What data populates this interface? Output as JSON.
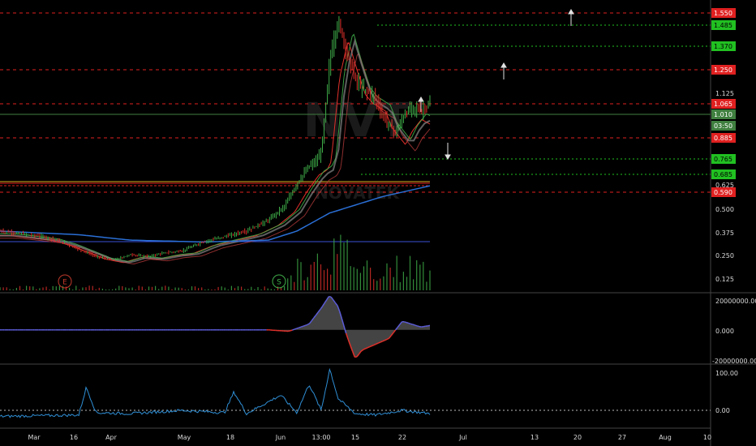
{
  "watermark": {
    "symbol": "NVT",
    "subtitle": "NOVATEK"
  },
  "time_axis": {
    "labels": [
      "Mar",
      "16",
      "Apr",
      "May",
      "18",
      "Jun",
      "13:00",
      "15",
      "22",
      "Jul",
      "13",
      "20",
      "27",
      "Aug",
      "10"
    ]
  },
  "price_axis": {
    "ticks": [
      "1.125",
      "0.625",
      "0.500",
      "0.375",
      "0.250",
      "0.125"
    ],
    "tags": [
      {
        "label": "1.550",
        "color": "#e02020",
        "text_color": "light"
      },
      {
        "label": "1.485",
        "color": "#21c021",
        "text_color": "dark"
      },
      {
        "label": "1.370",
        "color": "#21c021",
        "text_color": "dark"
      },
      {
        "label": "1.250",
        "color": "#e02020",
        "text_color": "light"
      },
      {
        "label": "1.065",
        "color": "#e02020",
        "text_color": "light"
      },
      {
        "label": "1.010",
        "color": "#3f7f3f",
        "text_color": "light"
      },
      {
        "label": "03:50",
        "color": "#3f7f3f",
        "text_color": "light"
      },
      {
        "label": "0.885",
        "color": "#e02020",
        "text_color": "light"
      },
      {
        "label": "0.765",
        "color": "#21c021",
        "text_color": "dark"
      },
      {
        "label": "0.685",
        "color": "#21c021",
        "text_color": "dark"
      },
      {
        "label": "0.590",
        "color": "#e02020",
        "text_color": "light"
      }
    ]
  },
  "event_markers": [
    {
      "letter": "E",
      "color": "#c0392b"
    },
    {
      "letter": "S",
      "color": "#3fae49"
    }
  ],
  "macd_axis": {
    "ticks": [
      "20000000.000",
      "0.000",
      "-20000000.000"
    ]
  },
  "rsi_axis": {
    "ticks": [
      "100.00",
      "0.00"
    ]
  },
  "colors": {
    "background": "#000000",
    "price_up": "#3fae49",
    "price_down": "#e0302a",
    "ma_blue": "#2a6fd6",
    "resistance_line": "#e02020",
    "target_line": "#21c021",
    "macd_positive": "#5b5bd6",
    "macd_negative": "#e0302a",
    "rsi_line": "#2f8fd6"
  },
  "chart_data": [
    {
      "type": "line",
      "panel": "price",
      "title": "",
      "x_unit": "approximate date",
      "ylim": [
        0.06,
        1.6
      ],
      "series": [
        {
          "color": "#3fae49",
          "x": [
            "Feb 26",
            "Mar 5",
            "Mar 12",
            "Mar 19",
            "Mar 26",
            "Apr 2",
            "Apr 9",
            "Apr 16",
            "Apr 23",
            "Apr 30",
            "May 7",
            "May 14",
            "May 21",
            "May 28",
            "Jun 2",
            "Jun 5",
            "Jun 8",
            "Jun 10",
            "Jun 11",
            "Jun 12",
            "Jun 13",
            "Jun 14",
            "Jun 15",
            "Jun 16",
            "Jun 18",
            "Jun 19",
            "Jun 20",
            "Jun 21",
            "Jun 22",
            "Jun 23",
            "Jun 24",
            "Jun 25"
          ],
          "values": [
            0.36,
            0.33,
            0.3,
            0.26,
            0.22,
            0.2,
            0.23,
            0.22,
            0.24,
            0.25,
            0.3,
            0.33,
            0.36,
            0.42,
            0.5,
            0.62,
            0.72,
            0.75,
            0.8,
            1.3,
            1.52,
            1.35,
            1.2,
            1.15,
            1.1,
            1.0,
            0.95,
            0.9,
            0.98,
            1.05,
            1.02,
            1.06
          ]
        },
        {
          "color": "#2a6fd6",
          "x": [
            "Feb 26",
            "Mar 19",
            "Apr 9",
            "May 7",
            "May 28",
            "Jun 5",
            "Jun 12",
            "Jun 19",
            "Jun 25"
          ],
          "values": [
            0.36,
            0.34,
            0.31,
            0.3,
            0.31,
            0.36,
            0.46,
            0.55,
            0.61
          ]
        }
      ]
    },
    {
      "type": "area",
      "panel": "macd",
      "x": [
        "Feb 26",
        "May 28",
        "Jun 3",
        "Jun 8",
        "Jun 11",
        "Jun 12",
        "Jun 13",
        "Jun 14",
        "Jun 15",
        "Jun 16",
        "Jun 18",
        "Jun 20",
        "Jun 22",
        "Jun 24",
        "Jun 25"
      ],
      "values": [
        0,
        0,
        -1000000,
        4000000,
        15000000,
        24000000,
        16000000,
        -4000000,
        -20000000,
        -14000000,
        -10000000,
        -6000000,
        6000000,
        2000000,
        3000000
      ],
      "ylim": [
        -22000000,
        24000000
      ]
    },
    {
      "type": "line",
      "panel": "rsi",
      "x": [
        "Feb 26",
        "Mar 19",
        "Mar 22",
        "Mar 26",
        "Apr 9",
        "Apr 30",
        "May 14",
        "May 17",
        "May 21",
        "Jun 1",
        "Jun 5",
        "Jun 8",
        "Jun 11",
        "Jun 12",
        "Jun 13",
        "Jun 15",
        "Jun 18",
        "Jun 22",
        "Jun 25"
      ],
      "values": [
        2,
        5,
        65,
        10,
        8,
        15,
        10,
        55,
        8,
        48,
        10,
        72,
        15,
        105,
        40,
        8,
        5,
        15,
        8
      ],
      "ylim": [
        -20,
        110
      ]
    }
  ]
}
